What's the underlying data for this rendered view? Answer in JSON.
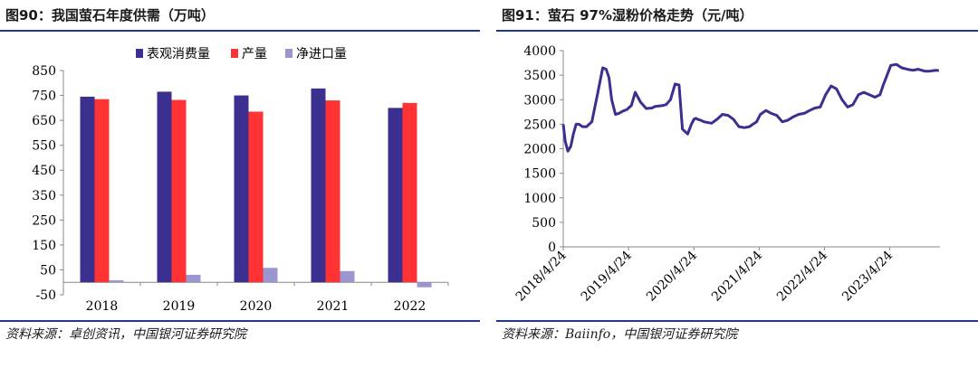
{
  "left_panel": {
    "title": "图90：我国萤石年度供需（万吨）",
    "source": "资料来源：卓创资讯，中国银河证券研究院"
  },
  "right_panel": {
    "title": "图91：萤石 97%湿粉价格走势（元/吨）",
    "source": "资料来源：Baiinfo，中国银河证券研究院"
  },
  "chart_data": [
    {
      "type": "bar",
      "title": "",
      "categories": [
        "2018",
        "2019",
        "2020",
        "2021",
        "2022"
      ],
      "series": [
        {
          "name": "表观消费量",
          "color": "#3b2f8f",
          "values": [
            745,
            765,
            750,
            778,
            700
          ]
        },
        {
          "name": "产量",
          "color": "#ff3333",
          "values": [
            735,
            732,
            685,
            730,
            720
          ]
        },
        {
          "name": "净进口量",
          "color": "#9b96cf",
          "values": [
            8,
            30,
            58,
            45,
            -20
          ]
        }
      ],
      "ylim": [
        -50,
        850
      ],
      "yticks": [
        "-50",
        "50",
        "150",
        "250",
        "350",
        "450",
        "550",
        "650",
        "750",
        "850"
      ],
      "grid": false,
      "legend": "top"
    },
    {
      "type": "line",
      "title": "",
      "color": "#3b2f8f",
      "xticks": [
        "2018/4/24",
        "2019/4/24",
        "2020/4/24",
        "2021/4/24",
        "2022/4/24",
        "2023/4/24"
      ],
      "xlim": [
        "2018-04-24",
        "2024-01-31"
      ],
      "ylim": [
        0,
        4000
      ],
      "yticks": [
        "0",
        "500",
        "1000",
        "1500",
        "2000",
        "2500",
        "3000",
        "3500",
        "4000"
      ],
      "grid": false,
      "series": [
        {
          "x": [
            "2018-04-24",
            "2018-05-05",
            "2018-05-20",
            "2018-06-05",
            "2018-06-20",
            "2018-07-05",
            "2018-07-20",
            "2018-08-10",
            "2018-09-01",
            "2018-10-01",
            "2018-11-01",
            "2018-12-01",
            "2018-12-20",
            "2019-01-05",
            "2019-01-20",
            "2019-02-10",
            "2019-03-01",
            "2019-03-20",
            "2019-04-15",
            "2019-05-10",
            "2019-06-01",
            "2019-07-01",
            "2019-08-01",
            "2019-09-01",
            "2019-09-20",
            "2019-10-10",
            "2019-11-01",
            "2019-11-20",
            "2019-12-15",
            "2020-01-10",
            "2020-02-01",
            "2020-02-20",
            "2020-03-20",
            "2020-04-10",
            "2020-04-24",
            "2020-05-05",
            "2020-05-15",
            "2020-06-01",
            "2020-06-20",
            "2020-08-01",
            "2020-09-01",
            "2020-10-01",
            "2020-11-01",
            "2020-12-01",
            "2021-01-01",
            "2021-02-01",
            "2021-03-01",
            "2021-03-20",
            "2021-04-10",
            "2021-05-01",
            "2021-06-01",
            "2021-07-01",
            "2021-08-01",
            "2021-09-01",
            "2021-10-01",
            "2021-11-01",
            "2021-12-01",
            "2022-01-01",
            "2022-02-01",
            "2022-03-01",
            "2022-04-01",
            "2022-05-01",
            "2022-06-01",
            "2022-07-01",
            "2022-08-01",
            "2022-09-01",
            "2022-10-01",
            "2022-11-01",
            "2022-12-01",
            "2023-01-01",
            "2023-02-01",
            "2023-03-01",
            "2023-03-20",
            "2023-04-10",
            "2023-05-01",
            "2023-06-01",
            "2023-07-01",
            "2023-08-01",
            "2023-09-01",
            "2023-10-01",
            "2023-10-20",
            "2023-11-10",
            "2023-12-01",
            "2023-12-20",
            "2024-01-10",
            "2024-01-25"
          ],
          "y": [
            2500,
            2150,
            1950,
            2050,
            2300,
            2500,
            2500,
            2450,
            2450,
            2550,
            3100,
            3650,
            3620,
            3450,
            3000,
            2700,
            2720,
            2760,
            2800,
            2880,
            3150,
            2950,
            2820,
            2830,
            2860,
            2870,
            2880,
            2900,
            3000,
            3320,
            3300,
            2400,
            2300,
            2500,
            2600,
            2620,
            2600,
            2580,
            2550,
            2520,
            2600,
            2700,
            2680,
            2600,
            2450,
            2430,
            2450,
            2500,
            2550,
            2700,
            2780,
            2720,
            2680,
            2550,
            2580,
            2650,
            2700,
            2720,
            2780,
            2830,
            2850,
            3100,
            3280,
            3220,
            3000,
            2850,
            2900,
            3100,
            3150,
            3100,
            3050,
            3100,
            3300,
            3500,
            3700,
            3720,
            3650,
            3620,
            3600,
            3620,
            3600,
            3580,
            3580,
            3590,
            3600,
            3590
          ]
        }
      ]
    }
  ]
}
